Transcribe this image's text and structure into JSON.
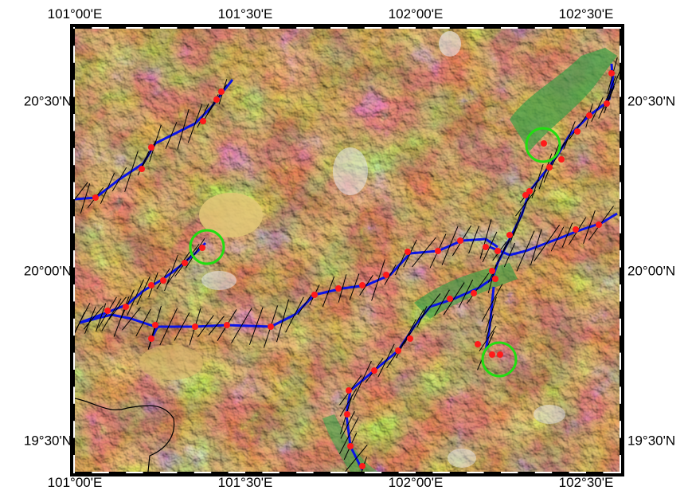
{
  "map": {
    "longitude_labels": [
      "101°00'E",
      "101°30'E",
      "102°00'E",
      "102°30'E"
    ],
    "latitude_labels": [
      "20°30'N",
      "20°00'N",
      "19°30'N"
    ],
    "colors": {
      "lowland": "#2e9a3c",
      "plain": "#e8d37a",
      "upland": "#b96a2c",
      "highland": "#8a3a1a",
      "peak": "#e8e8ee",
      "route_line": "#0a14e6",
      "sample_points": "#ff1a1a",
      "highlight_circles": "#22dd11",
      "border": "#000000"
    },
    "legend": null
  }
}
